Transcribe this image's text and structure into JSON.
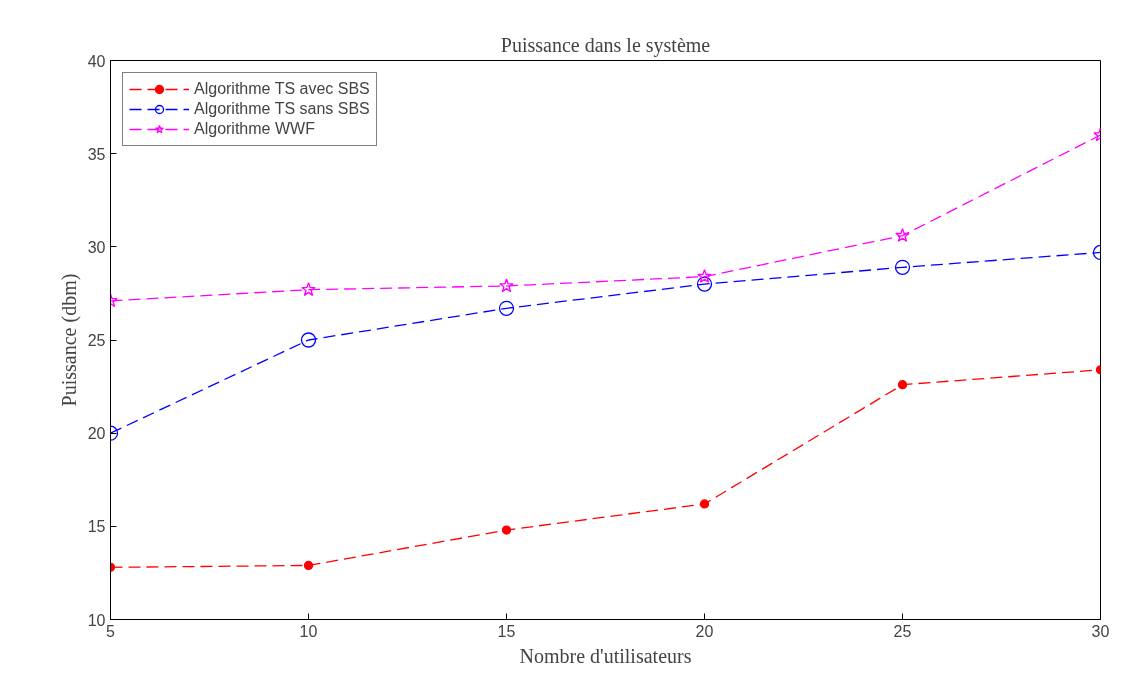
{
  "chart_data": {
    "type": "line",
    "title": "Puissance dans le système",
    "xlabel": "Nombre d'utilisateurs",
    "ylabel": "Puissance (dbm)",
    "x": [
      5,
      10,
      15,
      20,
      25,
      30
    ],
    "series": [
      {
        "name": "Algorithme TS avec SBS",
        "color": "#ff0000",
        "marker": "circle",
        "line_style": "dashed",
        "values": [
          12.8,
          12.9,
          14.8,
          16.2,
          22.6,
          23.4
        ]
      },
      {
        "name": "Algorithme TS sans SBS",
        "color": "#0000ff",
        "marker": "circle",
        "line_style": "dashed",
        "values": [
          20.0,
          25.0,
          26.7,
          28.0,
          28.9,
          29.7
        ]
      },
      {
        "name": "Algorithme WWF",
        "color": "#ff00ff",
        "marker": "star",
        "line_style": "dashed",
        "values": [
          27.1,
          27.7,
          27.9,
          28.4,
          30.6,
          36.0
        ]
      }
    ],
    "xlim": [
      5,
      30
    ],
    "ylim": [
      10,
      40
    ],
    "xticks": [
      5,
      10,
      15,
      20,
      25,
      30
    ],
    "yticks": [
      10,
      15,
      20,
      25,
      30,
      35,
      40
    ],
    "grid": false,
    "legend": "top left"
  }
}
